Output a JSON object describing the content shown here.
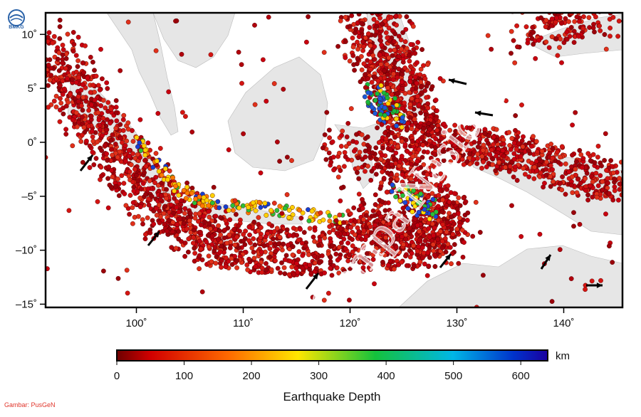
{
  "map": {
    "title": "Earthquake Depth",
    "colorbar_unit": "km",
    "colorbar_ticks": [
      "0",
      "100",
      "200",
      "300",
      "400",
      "500",
      "600"
    ],
    "colorbar_range": [
      0,
      640
    ],
    "lon_range": [
      91.5,
      145.5
    ],
    "lat_range": [
      -15.3,
      12
    ],
    "lon_ticks": [
      {
        "value": 100,
        "label": "100˚"
      },
      {
        "value": 110,
        "label": "110˚"
      },
      {
        "value": 120,
        "label": "120˚"
      },
      {
        "value": 130,
        "label": "130˚"
      },
      {
        "value": 140,
        "label": "140˚"
      }
    ],
    "lat_ticks": [
      {
        "value": 10,
        "label": "10˚"
      },
      {
        "value": 5,
        "label": "5˚"
      },
      {
        "value": 0,
        "label": "0˚"
      },
      {
        "value": -5,
        "label": "–5˚"
      },
      {
        "value": -10,
        "label": "–10˚"
      },
      {
        "value": -15,
        "label": "–15˚"
      }
    ],
    "colors": {
      "land": "#e6e6e6",
      "sea": "#ffffff",
      "shallow": "#c0000f",
      "colorbar_stops": [
        "#6e0000",
        "#e00000",
        "#ff6a00",
        "#ffe600",
        "#14c23c",
        "#00b6e6",
        "#0033cc",
        "#1a00a0"
      ]
    }
  },
  "watermark": "ISC Gempa Nasional",
  "logo": {
    "text": "BMKG",
    "icon": "bmkg-logo-icon"
  },
  "credit": "Gambar: PusGeN",
  "arrow_icon": "motion-arrow-icon"
}
